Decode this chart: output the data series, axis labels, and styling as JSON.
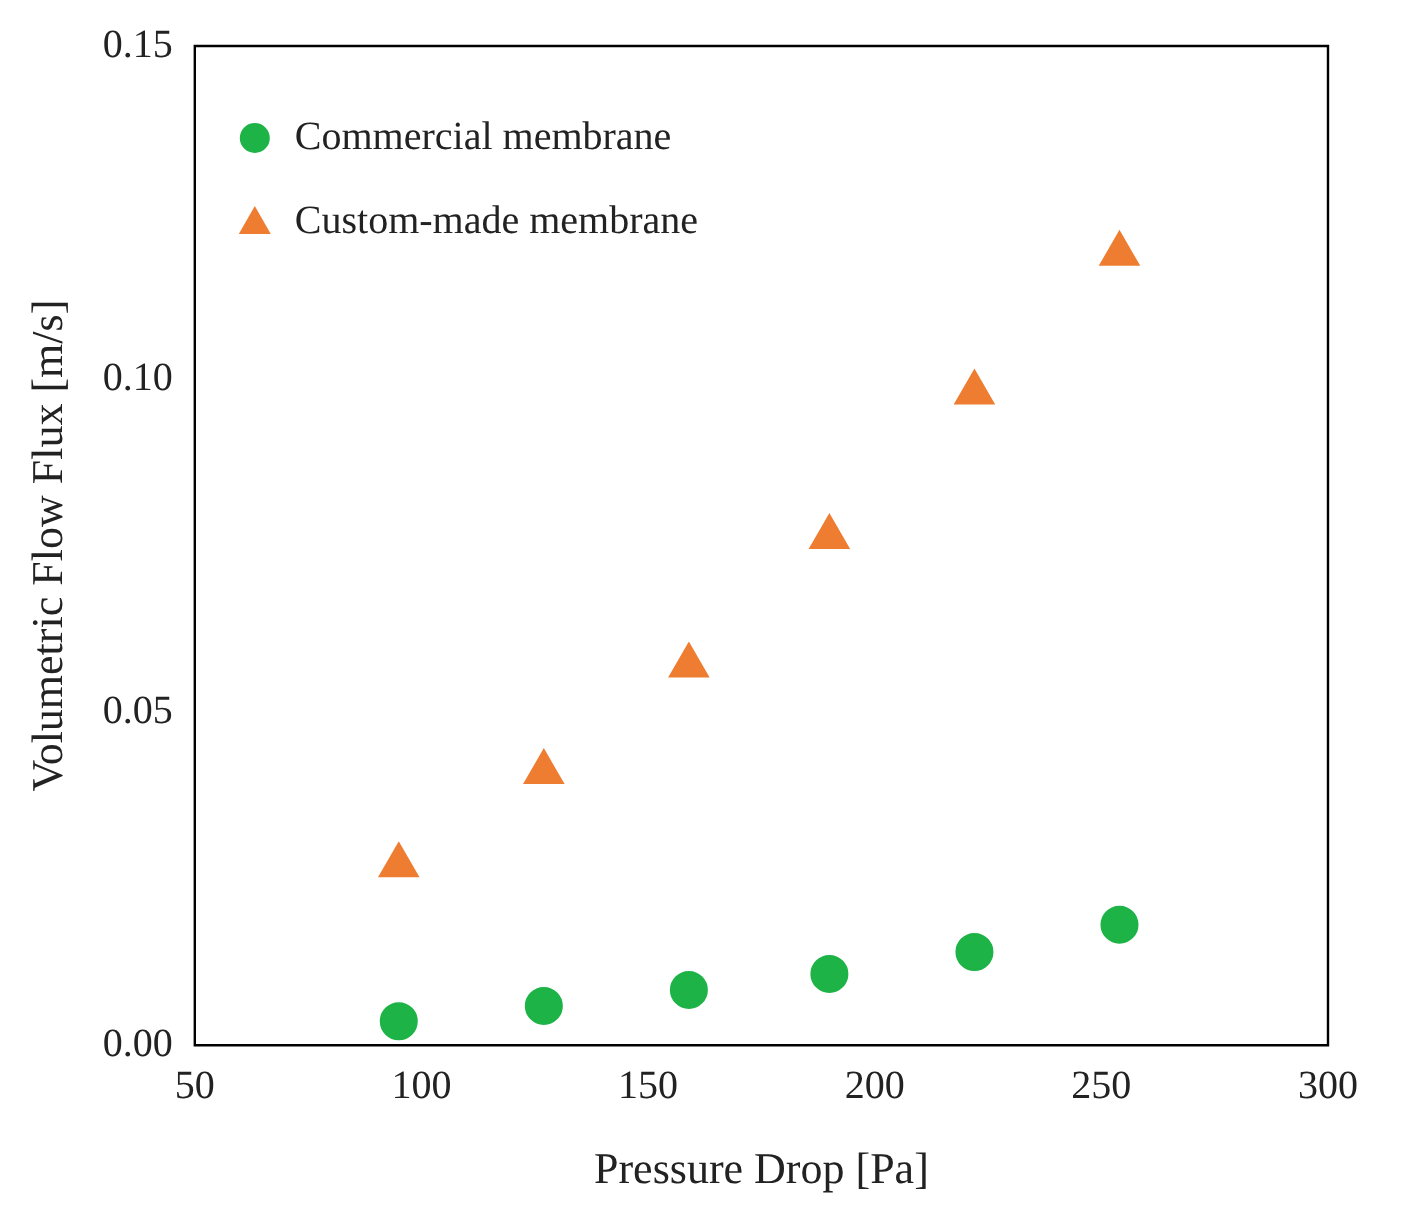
{
  "chart_data": {
    "type": "scatter",
    "xlabel": "Pressure Drop [Pa]",
    "ylabel": "Volumetric Flow Flux [m/s]",
    "x": [
      95,
      127,
      159,
      190,
      222,
      254
    ],
    "series": [
      {
        "name": "Commercial membrane",
        "color": "#1db346",
        "marker": "circle",
        "values": [
          0.0036,
          0.0059,
          0.0083,
          0.0107,
          0.014,
          0.0181
        ]
      },
      {
        "name": "Custom-made membrane",
        "color": "#ee7d31",
        "marker": "triangle",
        "values": [
          0.027,
          0.041,
          0.057,
          0.0763,
          0.098,
          0.1188
        ]
      }
    ],
    "xlim": [
      50,
      300
    ],
    "xticks": [
      50,
      100,
      150,
      200,
      250,
      300
    ],
    "ylim": [
      0,
      0.15
    ],
    "yticks": [
      {
        "value": 0,
        "label": "0.00"
      },
      {
        "value": 0.05,
        "label": "0.05"
      },
      {
        "value": 0.1,
        "label": "0.10"
      },
      {
        "value": 0.15,
        "label": "0.15"
      }
    ],
    "grid": false,
    "legend": "top left"
  }
}
